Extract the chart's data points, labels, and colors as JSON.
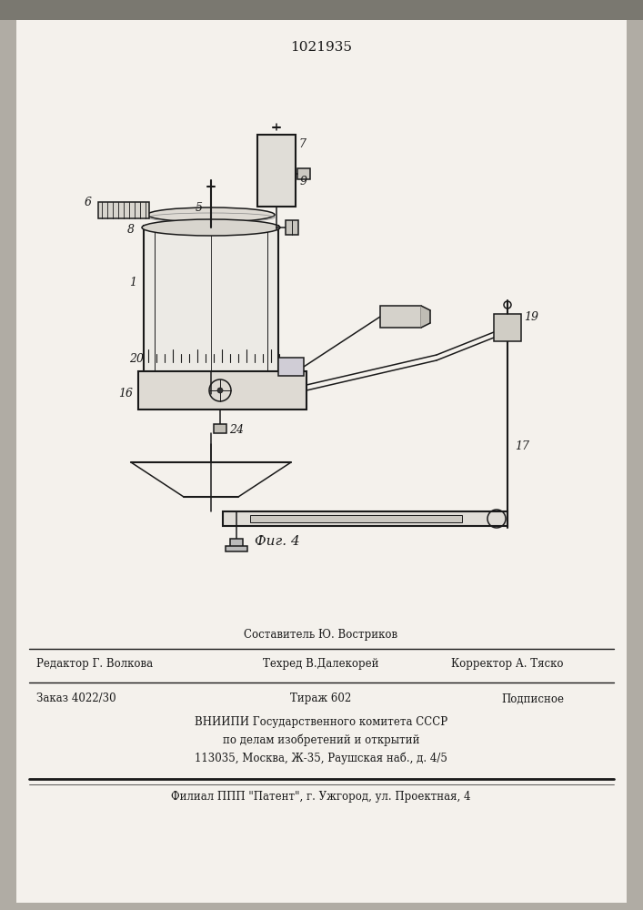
{
  "title": "1021935",
  "bg_color": "#f0ede8",
  "line_color": "#1a1a1a",
  "fig_caption": "Фиг. 4",
  "footer": {
    "sestavitel": "Составитель Ю. Востриков",
    "redaktor": "Редактор Г. Волкова",
    "tehred": "Техред В.Далекорей",
    "korrektor": "Корректор А. Тяско",
    "zakaz": "Заказ 4022/30",
    "tirazh": "Тираж 602",
    "podpisnoe": "Подписное",
    "vniip1": "ВНИИПИ Государственного комитета СССР",
    "vniip2": "по делам изобретений и открытий",
    "vniip3": "113035, Москва, Ж-35, Раушская наб., д. 4/5",
    "filial": "Филиал ППП \"Патент\", г. Ужгород, ул. Проектная, 4"
  }
}
